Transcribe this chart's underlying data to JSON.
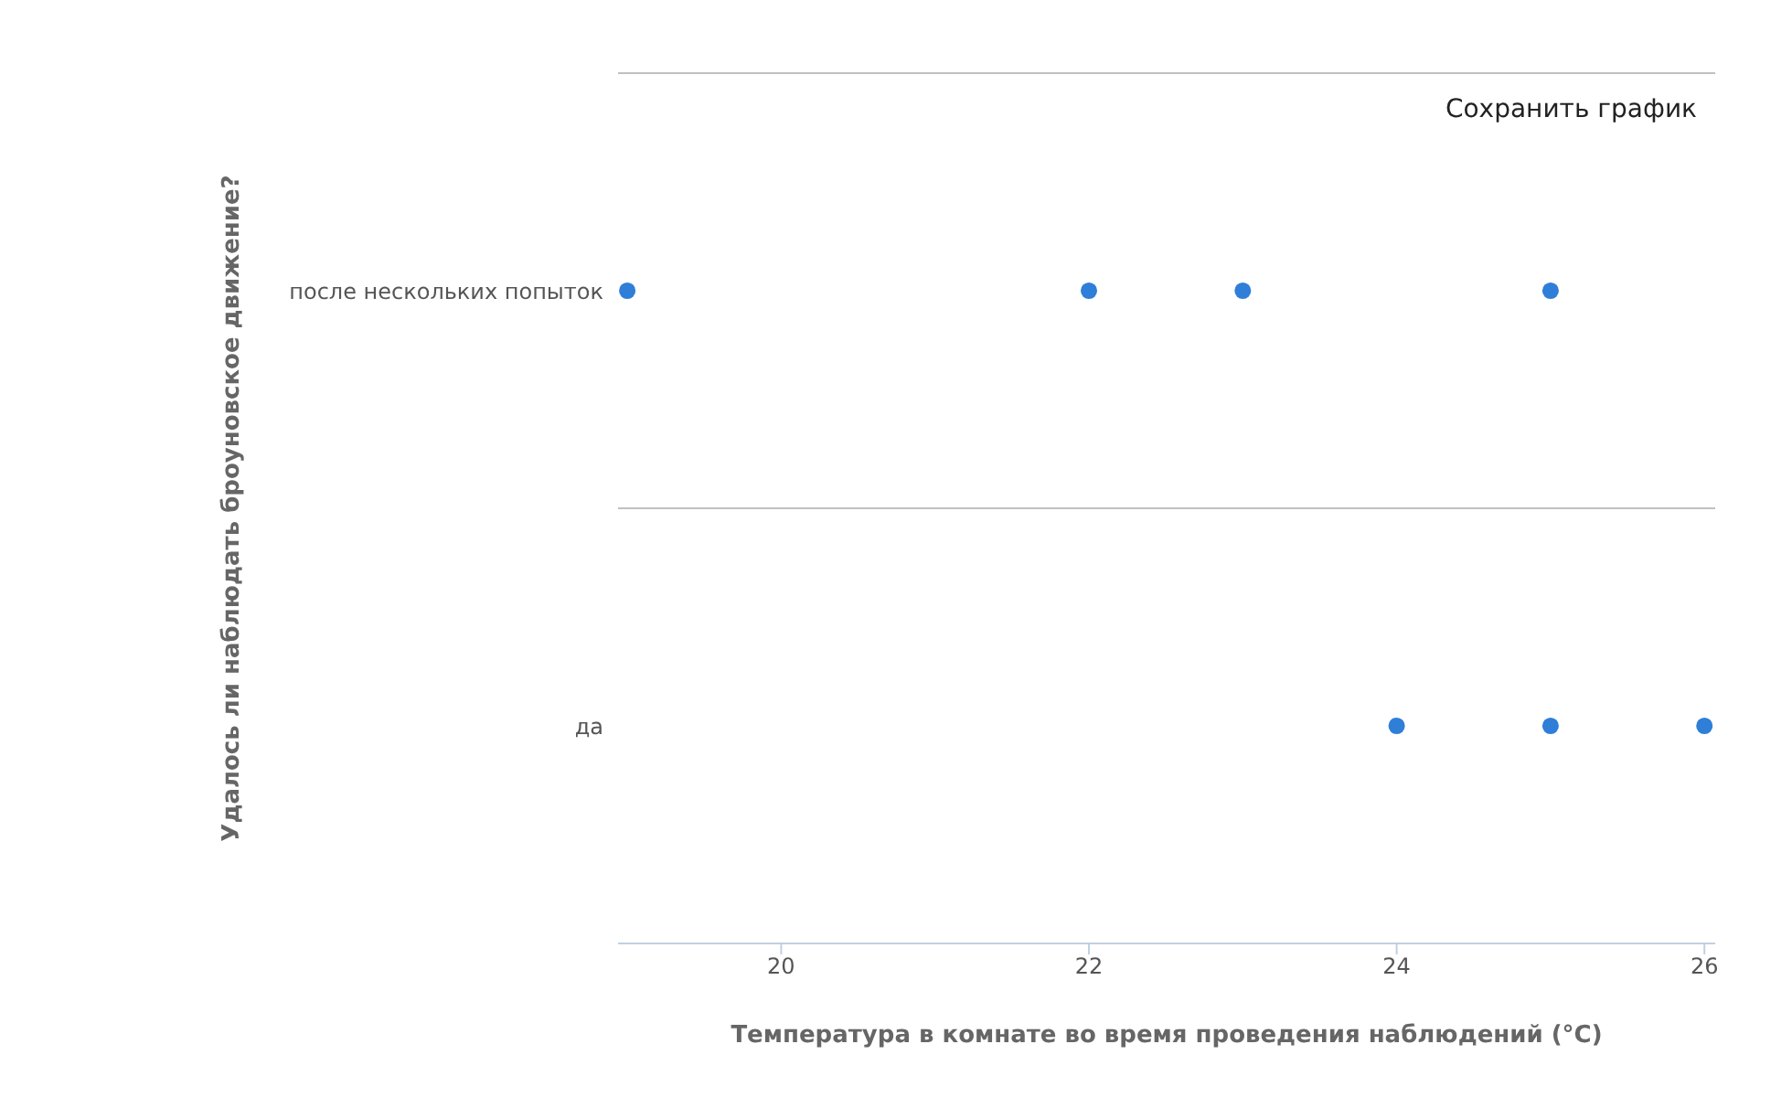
{
  "chart_data": {
    "type": "scatter",
    "orientation": "horizontal",
    "xlabel": "Температура в комнате во время проведения наблюдений (°C)",
    "ylabel": "Удалось ли наблюдать броуновское движение?",
    "categories": [
      "после нескольких попыток",
      "да"
    ],
    "series": [
      {
        "color": "#2f7ed8",
        "values": [
          19,
          24
        ]
      },
      {
        "color": "#2f7ed8",
        "values": [
          22,
          25
        ]
      },
      {
        "color": "#2f7ed8",
        "values": [
          23,
          26
        ]
      },
      {
        "color": "#2f7ed8",
        "values": [
          25,
          null
        ]
      }
    ],
    "xlim": [
      18.94,
      26.07
    ],
    "xticks": [
      20,
      22,
      24,
      26
    ],
    "grid": "y",
    "marker": "circle",
    "annotations": [
      "Сохранить график"
    ]
  }
}
